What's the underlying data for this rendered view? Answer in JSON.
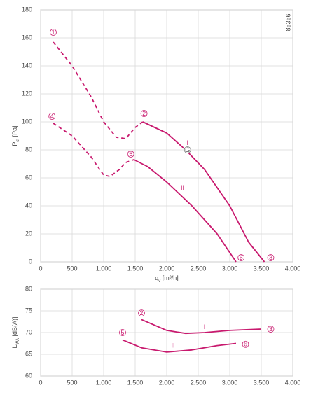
{
  "chart_data": [
    {
      "type": "line",
      "code": "85366",
      "ylabel": [
        "P",
        "sf",
        " [Pa]"
      ],
      "xlabel": [
        "q",
        "v",
        " [m³/h]"
      ],
      "xlim": [
        0,
        4000
      ],
      "xticks": [
        0,
        500,
        {
          "value": 1000,
          "label": "1.000"
        },
        {
          "value": 1500,
          "label": "1.500"
        },
        {
          "value": 2000,
          "label": "2.000"
        },
        {
          "value": 2500,
          "label": "2.500"
        },
        {
          "value": 3000,
          "label": "3.000"
        },
        {
          "value": 3500,
          "label": "3.500"
        },
        {
          "value": 4000,
          "label": "4.000"
        }
      ],
      "ylim": [
        0,
        180
      ],
      "yticks": [
        0,
        20,
        40,
        60,
        80,
        100,
        120,
        140,
        160,
        180
      ],
      "grid": true,
      "series": [
        {
          "name": "I",
          "color": "#c8196e",
          "solid_from": 7,
          "x": [
            200,
            500,
            800,
            1000,
            1200,
            1350,
            1500,
            1620,
            2000,
            2300,
            2600,
            3000,
            3300,
            3550
          ],
          "values": [
            157,
            140,
            118,
            100,
            89,
            88,
            96,
            100,
            92,
            80,
            66,
            40,
            14,
            0
          ]
        },
        {
          "name": "II",
          "color": "#c8196e",
          "solid_from": 7,
          "x": [
            200,
            500,
            800,
            1000,
            1100,
            1250,
            1350,
            1480,
            1700,
            2000,
            2400,
            2800,
            3100
          ],
          "values": [
            99,
            90,
            75,
            62,
            61,
            66,
            71,
            73,
            68,
            57,
            40,
            20,
            0
          ]
        }
      ],
      "annotations": [
        {
          "text": "1",
          "x": 200,
          "y": 164,
          "circled": true
        },
        {
          "text": "2",
          "x": 1640,
          "y": 106,
          "circled": true
        },
        {
          "text": "3",
          "x": 3650,
          "y": 3,
          "circled": true
        },
        {
          "text": "4",
          "x": 180,
          "y": 104,
          "circled": true
        },
        {
          "text": "5",
          "x": 1430,
          "y": 77,
          "circled": true
        },
        {
          "text": "6",
          "x": 3180,
          "y": 3,
          "circled": true
        },
        {
          "text": "G",
          "x": 2330,
          "y": 80,
          "circled": true
        },
        {
          "text": "I",
          "x": 2330,
          "y": 85,
          "circled": false
        },
        {
          "text": "II",
          "x": 2250,
          "y": 53,
          "circled": false
        }
      ]
    },
    {
      "type": "line",
      "ylabel": [
        "L",
        "WA",
        " [dB(A)]"
      ],
      "xlim": [
        0,
        4000
      ],
      "xticks": [
        0,
        500,
        {
          "value": 1000,
          "label": "1.000"
        },
        {
          "value": 1500,
          "label": "1.500"
        },
        {
          "value": 2000,
          "label": "2.000"
        },
        {
          "value": 2500,
          "label": "2.500"
        },
        {
          "value": 3000,
          "label": "3.000"
        },
        {
          "value": 3500,
          "label": "3.500"
        },
        {
          "value": 4000,
          "label": "4.000"
        }
      ],
      "ylim": [
        60,
        80
      ],
      "yticks": [
        60,
        65,
        70,
        75,
        80
      ],
      "grid": true,
      "series": [
        {
          "name": "I",
          "color": "#c8196e",
          "solid_from": 0,
          "x": [
            1600,
            2000,
            2300,
            2600,
            3000,
            3500
          ],
          "values": [
            73,
            70.5,
            69.8,
            70,
            70.5,
            70.8
          ]
        },
        {
          "name": "II",
          "color": "#c8196e",
          "solid_from": 0,
          "x": [
            1300,
            1600,
            2000,
            2400,
            2800,
            3100
          ],
          "values": [
            68.3,
            66.5,
            65.5,
            66,
            67,
            67.5
          ]
        }
      ],
      "annotations": [
        {
          "text": "2",
          "x": 1600,
          "y": 74.5,
          "circled": true
        },
        {
          "text": "3",
          "x": 3650,
          "y": 70.8,
          "circled": true
        },
        {
          "text": "5",
          "x": 1300,
          "y": 70,
          "circled": true
        },
        {
          "text": "6",
          "x": 3250,
          "y": 67.3,
          "circled": true
        },
        {
          "text": "I",
          "x": 2600,
          "y": 71.3,
          "circled": false
        },
        {
          "text": "II",
          "x": 2100,
          "y": 67,
          "circled": false
        }
      ]
    }
  ]
}
